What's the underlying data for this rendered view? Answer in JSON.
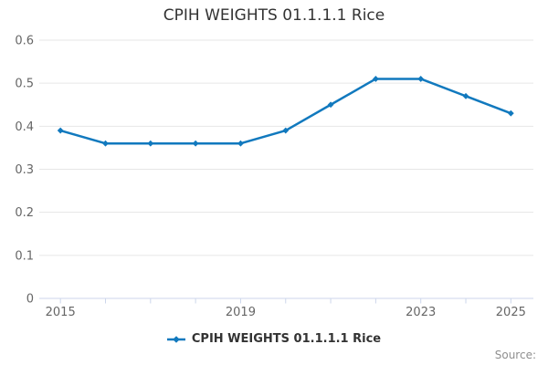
{
  "title": "CPIH WEIGHTS 01.1.1.1 Rice",
  "legend": {
    "label": "CPIH WEIGHTS 01.1.1.1 Rice"
  },
  "source": {
    "label": "Source:"
  },
  "colors": {
    "line": "#1179be",
    "grid": "#e6e6e6",
    "axis_line": "#ccd6eb",
    "tick_label": "#666666",
    "title_text": "#333333",
    "legend_text": "#333333",
    "source_text": "#8e8e8e",
    "background": "#ffffff"
  },
  "chart_data": {
    "type": "line",
    "title": "CPIH WEIGHTS 01.1.1.1 Rice",
    "series": [
      {
        "name": "CPIH WEIGHTS 01.1.1.1 Rice",
        "x": [
          2015,
          2016,
          2017,
          2018,
          2019,
          2020,
          2021,
          2022,
          2023,
          2024,
          2025
        ],
        "values": [
          0.39,
          0.36,
          0.36,
          0.36,
          0.36,
          0.39,
          0.45,
          0.51,
          0.51,
          0.47,
          0.43
        ]
      }
    ],
    "xlabel": "",
    "ylabel": "",
    "xlim": [
      2014.53,
      2025.5
    ],
    "ylim": [
      0,
      0.6
    ],
    "y_ticks": [
      0,
      0.1,
      0.2,
      0.3,
      0.4,
      0.5,
      0.6
    ],
    "y_tick_labels": [
      "0",
      "0.1",
      "0.2",
      "0.3",
      "0.4",
      "0.5",
      "0.6"
    ],
    "x_minor_ticks": [
      2015,
      2016,
      2017,
      2018,
      2019,
      2020,
      2021,
      2022,
      2023,
      2024,
      2025
    ],
    "x_tick_labels": [
      {
        "year": 2015,
        "label": "2015"
      },
      {
        "year": 2019,
        "label": "2019"
      },
      {
        "year": 2023,
        "label": "2023"
      },
      {
        "year": 2025,
        "label": "2025"
      }
    ],
    "grid": "horizontal",
    "legend_position": "bottom-center",
    "marker": "diamond"
  }
}
